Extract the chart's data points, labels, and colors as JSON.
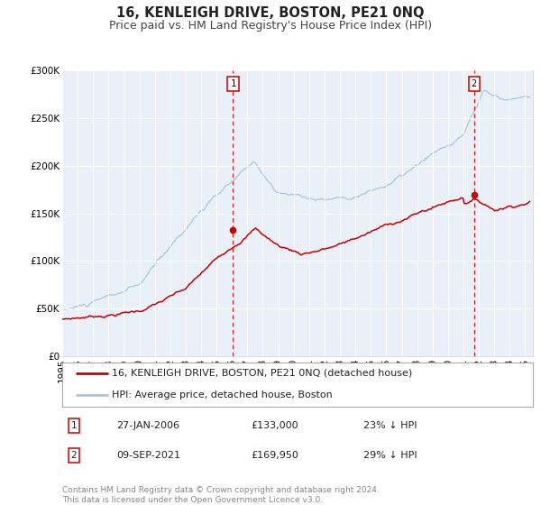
{
  "title": "16, KENLEIGH DRIVE, BOSTON, PE21 0NQ",
  "subtitle": "Price paid vs. HM Land Registry's House Price Index (HPI)",
  "ylim": [
    0,
    300000
  ],
  "yticks": [
    0,
    50000,
    100000,
    150000,
    200000,
    250000,
    300000
  ],
  "ytick_labels": [
    "£0",
    "£50K",
    "£100K",
    "£150K",
    "£200K",
    "£250K",
    "£300K"
  ],
  "hpi_color": "#aac4de",
  "price_color": "#cc0000",
  "marker_color": "#cc0000",
  "vline_color": "#cc0000",
  "plot_bg_color": "#eaf0f8",
  "grid_color": "#ffffff",
  "legend_entry1": "16, KENLEIGH DRIVE, BOSTON, PE21 0NQ (detached house)",
  "legend_entry2": "HPI: Average price, detached house, Boston",
  "annotation1_date": "27-JAN-2006",
  "annotation1_price": "£133,000",
  "annotation1_hpi": "23% ↓ HPI",
  "annotation2_date": "09-SEP-2021",
  "annotation2_price": "£169,950",
  "annotation2_hpi": "29% ↓ HPI",
  "marker1_x": 2006.07,
  "marker1_y": 133000,
  "marker2_x": 2021.68,
  "marker2_y": 169950,
  "vline1_x": 2006.07,
  "vline2_x": 2021.68,
  "footer": "Contains HM Land Registry data © Crown copyright and database right 2024.\nThis data is licensed under the Open Government Licence v3.0.",
  "title_fontsize": 10.5,
  "subtitle_fontsize": 9,
  "tick_fontsize": 7.5,
  "legend_fontsize": 8,
  "annotation_fontsize": 8,
  "footer_fontsize": 6.5,
  "xmin": 1995,
  "xmax": 2025.5
}
